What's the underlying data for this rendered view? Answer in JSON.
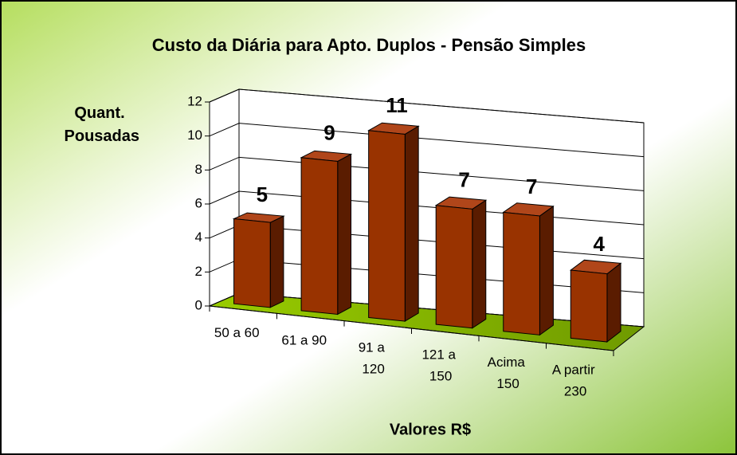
{
  "chart_data": {
    "type": "bar3d",
    "title": "Custo da Diária para Apto. Duplos - Pensão Simples",
    "y_label": "Quant. Pousadas",
    "x_label": "Valores R$",
    "categories": [
      "50 a 60",
      "61 a 90",
      "91 a 120",
      "121 a 150",
      "Acima 150",
      "A partir 230"
    ],
    "values": [
      5,
      9,
      11,
      7,
      7,
      4
    ],
    "color": "#993300",
    "ylim": [
      0,
      12
    ],
    "yticks": [
      0,
      2,
      4,
      6,
      8,
      10,
      12
    ],
    "grid": true
  }
}
